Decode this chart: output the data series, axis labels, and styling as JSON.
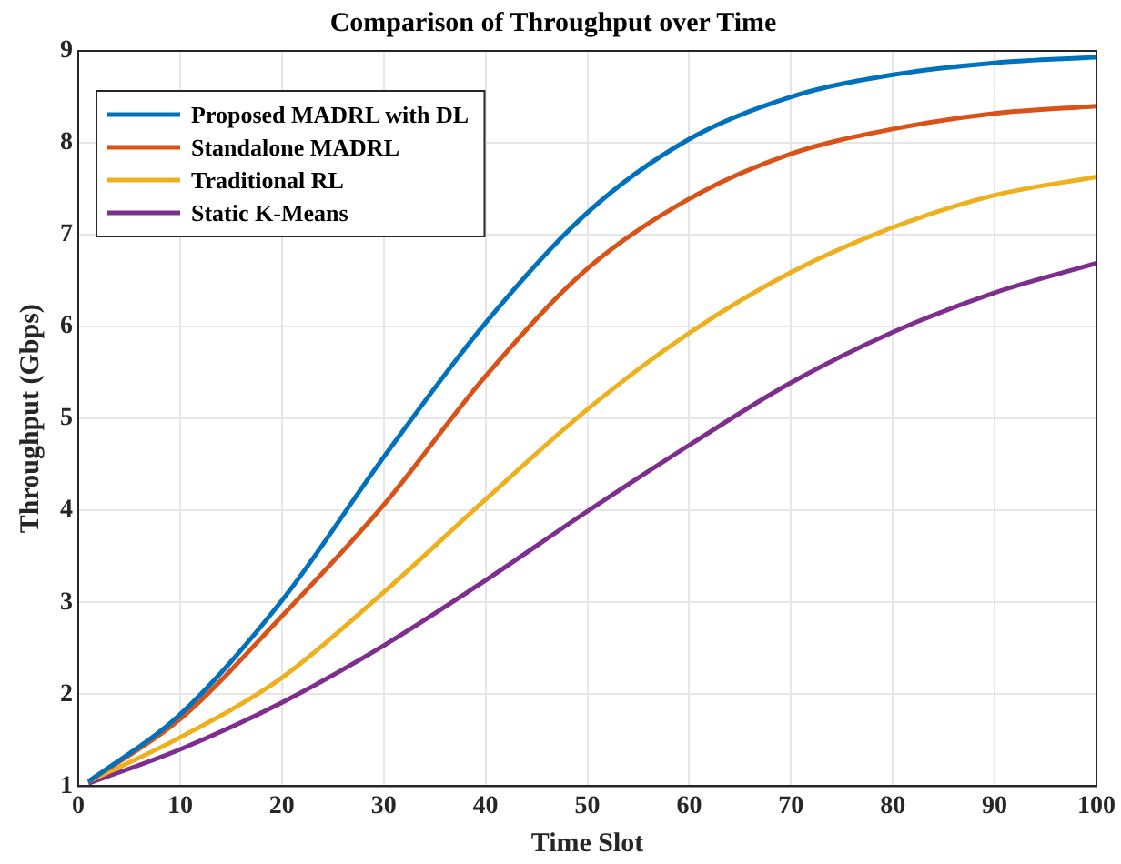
{
  "chart_data": {
    "type": "line",
    "title": "Comparison of Throughput over Time",
    "xlabel": "Time Slot",
    "ylabel": "Throughput (Gbps)",
    "x": [
      1,
      10,
      20,
      30,
      40,
      50,
      60,
      70,
      80,
      90,
      100
    ],
    "series": [
      {
        "name": "Proposed MADRL with DL",
        "color": "#0072bd",
        "values": [
          1.05,
          1.78,
          3.02,
          4.58,
          6.04,
          7.24,
          8.04,
          8.5,
          8.74,
          8.87,
          8.93
        ]
      },
      {
        "name": "Standalone MADRL",
        "color": "#d95319",
        "values": [
          1.05,
          1.73,
          2.85,
          4.06,
          5.46,
          6.63,
          7.39,
          7.88,
          8.15,
          8.32,
          8.4
        ]
      },
      {
        "name": "Traditional RL",
        "color": "#edb120",
        "values": [
          1.05,
          1.53,
          2.18,
          3.11,
          4.12,
          5.1,
          5.93,
          6.59,
          7.08,
          7.43,
          7.63
        ]
      },
      {
        "name": "Static K-Means",
        "color": "#7e2f8e",
        "values": [
          1.03,
          1.4,
          1.91,
          2.53,
          3.24,
          3.99,
          4.71,
          5.39,
          5.94,
          6.37,
          6.69
        ]
      }
    ],
    "xlim": [
      0,
      100
    ],
    "xticks": [
      0,
      10,
      20,
      30,
      40,
      50,
      60,
      70,
      80,
      90,
      100
    ],
    "ylim": [
      1,
      9
    ],
    "yticks": [
      1,
      2,
      3,
      4,
      5,
      6,
      7,
      8,
      9
    ],
    "grid": true,
    "legend": "top left",
    "marker": "none",
    "line_style": "solid"
  }
}
